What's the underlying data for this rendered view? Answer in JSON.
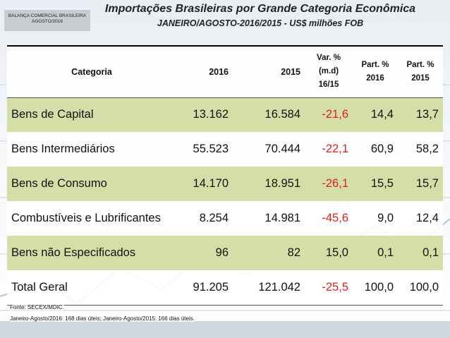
{
  "header": {
    "corner_line1": "BALANÇA COMERCIAL BRASILEIRA",
    "corner_line2": "AGOSTO/2016",
    "title": "Importações Brasileiras por Grande Categoria Econômica",
    "subtitle": "JANEIRO/AGOSTO-2016/2015 - US$ milhões FOB"
  },
  "table": {
    "headers": {
      "category": "Categoria",
      "y2016": "2016",
      "y2015": "2015",
      "var_l1": "Var. %",
      "var_l2": "(m.d)",
      "var_l3": "16/15",
      "p16_l1": "Part. %",
      "p16_l2": "2016",
      "p15_l1": "Part. %",
      "p15_l2": "2015"
    },
    "rows": [
      {
        "category": "Bens de Capital",
        "y2016": "13.162",
        "y2015": "16.584",
        "var": "-21,6",
        "p16": "14,4",
        "p15": "13,7"
      },
      {
        "category": "Bens Intermediários",
        "y2016": "55.523",
        "y2015": "70.444",
        "var": "-22,1",
        "p16": "60,9",
        "p15": "58,2"
      },
      {
        "category": "Bens de Consumo",
        "y2016": "14.170",
        "y2015": "18.951",
        "var": "-26,1",
        "p16": "15,5",
        "p15": "15,7"
      },
      {
        "category": "Combustíveis e Lubrificantes",
        "y2016": "8.254",
        "y2015": "14.981",
        "var": "-45,6",
        "p16": "9,0",
        "p15": "12,4"
      },
      {
        "category": "Bens não Especificados",
        "y2016": "96",
        "y2015": "82",
        "var": "15,0",
        "p16": "0,1",
        "p15": "0,1"
      },
      {
        "category": "Total Geral",
        "y2016": "91.205",
        "y2015": "121.042",
        "var": "-25,5",
        "p16": "100,0",
        "p15": "100,0"
      }
    ]
  },
  "footer": {
    "source": "Fonte: SECEX/MDIC.",
    "days": "Janeiro-Agosto/2016: 168 dias úteis; Janeiro-Agosto/2015: 166 dias úteis."
  },
  "colors": {
    "row_highlight": "#d3dfa6",
    "negative": "#e0201e"
  }
}
